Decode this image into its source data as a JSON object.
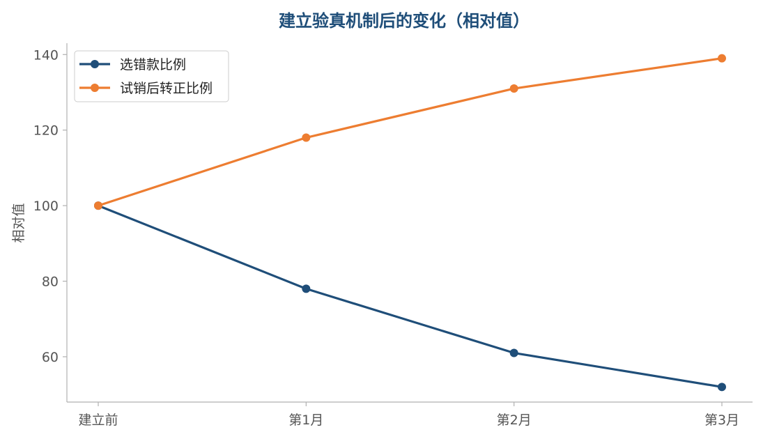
{
  "chart_data": {
    "type": "line",
    "title": "建立验真机制后的变化（相对值）",
    "xlabel": "",
    "ylabel": "相对值",
    "categories": [
      "建立前",
      "第1月",
      "第2月",
      "第3月"
    ],
    "ylim": [
      48,
      143
    ],
    "yticks": [
      60,
      80,
      100,
      120,
      140
    ],
    "grid": false,
    "legend_position": "top-left",
    "series": [
      {
        "name": "选错款比例",
        "color": "#1f4e79",
        "values": [
          100,
          78,
          61,
          52
        ]
      },
      {
        "name": "试销后转正比例",
        "color": "#ed7d31",
        "values": [
          100,
          118,
          131,
          139
        ]
      }
    ]
  }
}
